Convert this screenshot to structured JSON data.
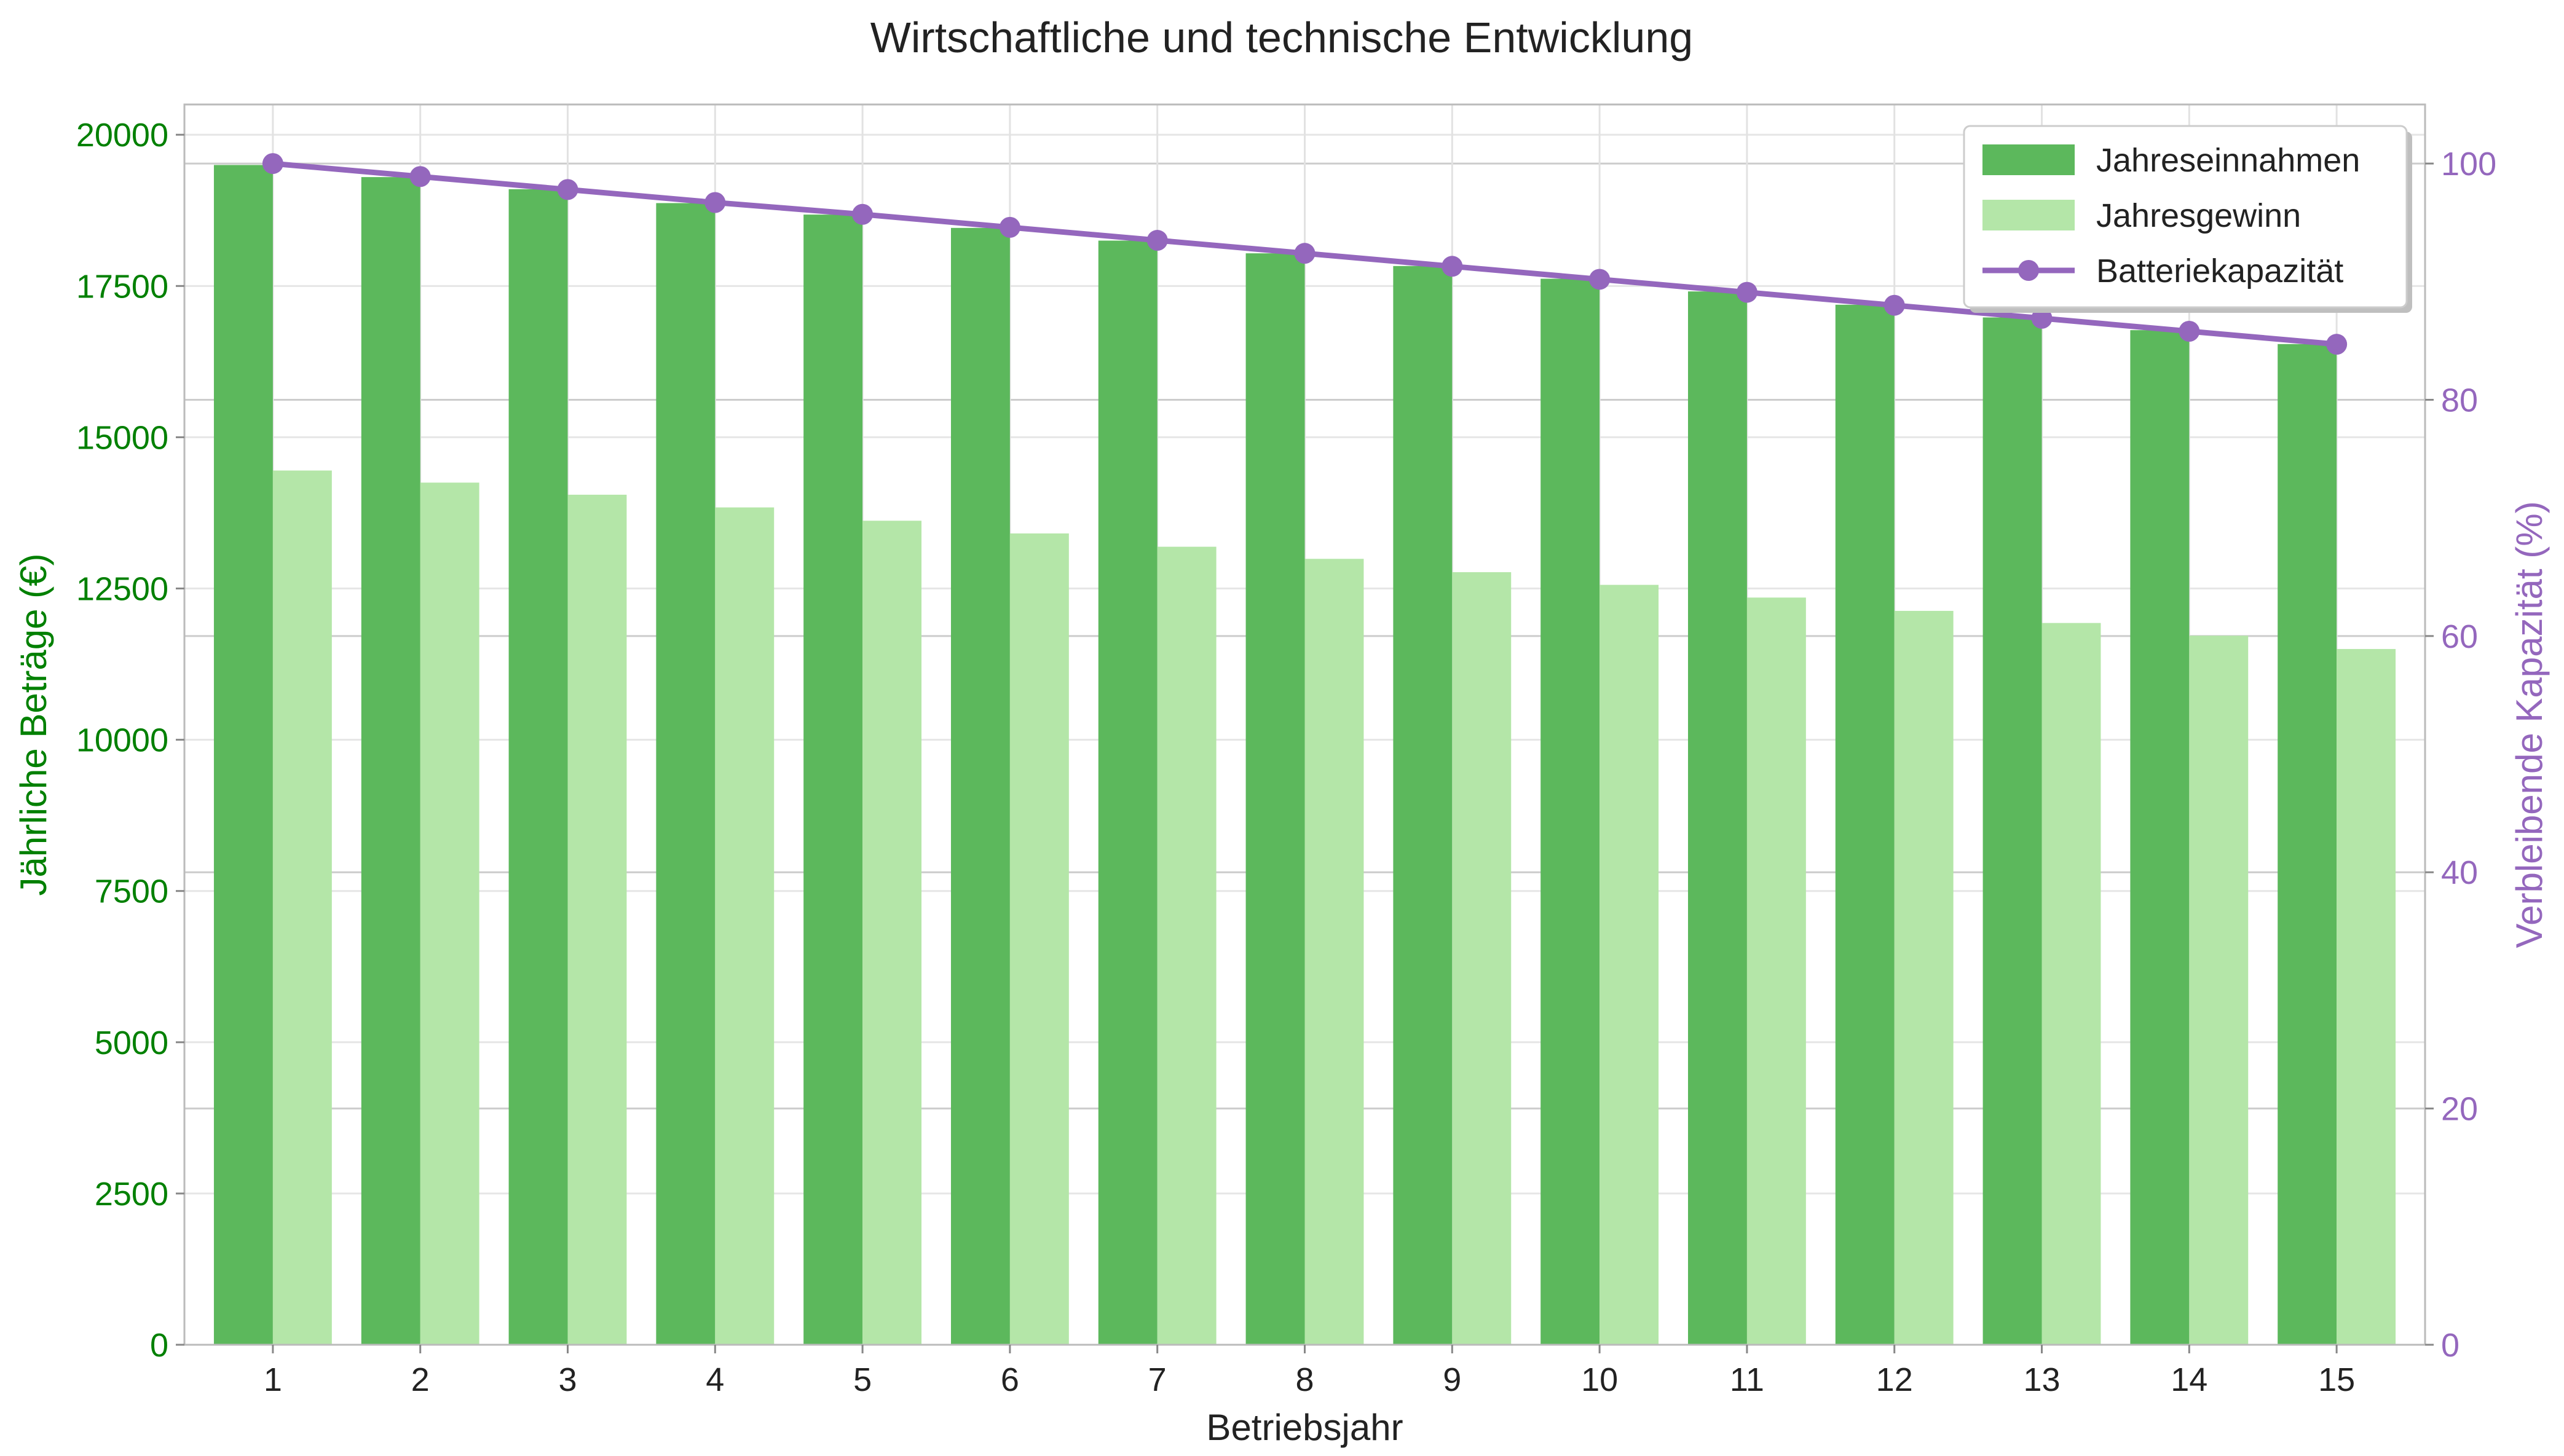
{
  "chart_data": {
    "type": "bar",
    "title": "Wirtschaftliche und technische Entwicklung",
    "xlabel": "Betriebsjahr",
    "ylabel": "Jährliche Beträge (€)",
    "ylabel_right": "Verbleibende Kapazität (%)",
    "categories": [
      "1",
      "2",
      "3",
      "4",
      "5",
      "6",
      "7",
      "8",
      "9",
      "10",
      "11",
      "12",
      "13",
      "14",
      "15"
    ],
    "ylim": [
      0,
      20500
    ],
    "ylim_right": [
      0,
      105
    ],
    "yticks": [
      0,
      2500,
      5000,
      7500,
      10000,
      12500,
      15000,
      17500,
      20000
    ],
    "yticks_right": [
      0,
      20,
      40,
      60,
      80,
      100
    ],
    "grid": true,
    "legend_position": "top-right",
    "series": [
      {
        "name": "Jahreseinnahmen",
        "type": "bar",
        "axis": "left",
        "color": "#5cb85c",
        "values": [
          19500,
          19300,
          19100,
          18870,
          18680,
          18460,
          18250,
          18040,
          17830,
          17620,
          17410,
          17190,
          16980,
          16770,
          16540
        ]
      },
      {
        "name": "Jahresgewinn",
        "type": "bar",
        "axis": "left",
        "color": "#b4e6a8",
        "values": [
          14450,
          14250,
          14050,
          13840,
          13620,
          13410,
          13190,
          12990,
          12770,
          12560,
          12350,
          12130,
          11930,
          11720,
          11500
        ]
      },
      {
        "name": "Batteriekapazität",
        "type": "line",
        "axis": "right",
        "color": "#9467bd",
        "values": [
          100.0,
          98.9,
          97.8,
          96.7,
          95.7,
          94.6,
          93.5,
          92.4,
          91.3,
          90.2,
          89.1,
          88.0,
          86.9,
          85.8,
          84.7
        ]
      }
    ]
  }
}
